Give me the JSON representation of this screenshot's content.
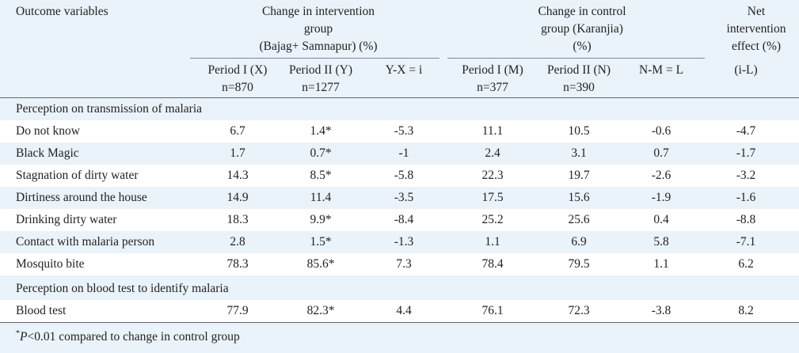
{
  "headers": {
    "outcome": "Outcome variables",
    "intervention_line1": "Change in intervention",
    "intervention_line2": "group",
    "intervention_line3": "(Bajag+ Samnapur) (%)",
    "control_line1": "Change in control",
    "control_line2": "group (Karanjia)",
    "control_line3": "(%)",
    "net_line1": "Net",
    "net_line2": "intervention",
    "net_line3": "effect (%)"
  },
  "subheaders": [
    {
      "line1": "Period I (X)",
      "line2": "n=870"
    },
    {
      "line1": "Period II (Y)",
      "line2": "n=1277"
    },
    {
      "line1": "Y-X = i",
      "line2": ""
    },
    {
      "line1": "Period I (M)",
      "line2": "n=377"
    },
    {
      "line1": "Period II (N)",
      "line2": "n=390"
    },
    {
      "line1": "N-M = L",
      "line2": ""
    },
    {
      "line1": "(i-L)",
      "line2": ""
    }
  ],
  "section1": "Perception on transmission of malaria",
  "rows1": [
    {
      "label": "Do not know",
      "vals": [
        "6.7",
        "1.4*",
        "-5.3",
        "11.1",
        "10.5",
        "-0.6",
        "-4.7"
      ]
    },
    {
      "label": "Black Magic",
      "vals": [
        "1.7",
        "0.7*",
        "-1",
        "2.4",
        "3.1",
        "0.7",
        "-1.7"
      ]
    },
    {
      "label": "Stagnation of dirty water",
      "vals": [
        "14.3",
        "8.5*",
        "-5.8",
        "22.3",
        "19.7",
        "-2.6",
        "-3.2"
      ]
    },
    {
      "label": "Dirtiness around the house",
      "vals": [
        "14.9",
        "11.4",
        "-3.5",
        "17.5",
        "15.6",
        "-1.9",
        "-1.6"
      ]
    },
    {
      "label": "Drinking dirty water",
      "vals": [
        "18.3",
        "9.9*",
        "-8.4",
        "25.2",
        "25.6",
        "0.4",
        "-8.8"
      ]
    },
    {
      "label": "Contact with malaria person",
      "vals": [
        "2.8",
        "1.5*",
        "-1.3",
        "1.1",
        "6.9",
        "5.8",
        "-7.1"
      ]
    },
    {
      "label": "Mosquito bite",
      "vals": [
        "78.3",
        "85.6*",
        "7.3",
        "78.4",
        "79.5",
        "1.1",
        "6.2"
      ]
    }
  ],
  "section2": "Perception on blood test to identify malaria",
  "rows2": [
    {
      "label": "Blood test",
      "vals": [
        "77.9",
        "82.3*",
        "4.4",
        "76.1",
        "72.3",
        "-3.8",
        "8.2"
      ]
    }
  ],
  "footnote": {
    "mark": "*",
    "p": "P",
    "text": "<0.01 compared to change in control group"
  }
}
